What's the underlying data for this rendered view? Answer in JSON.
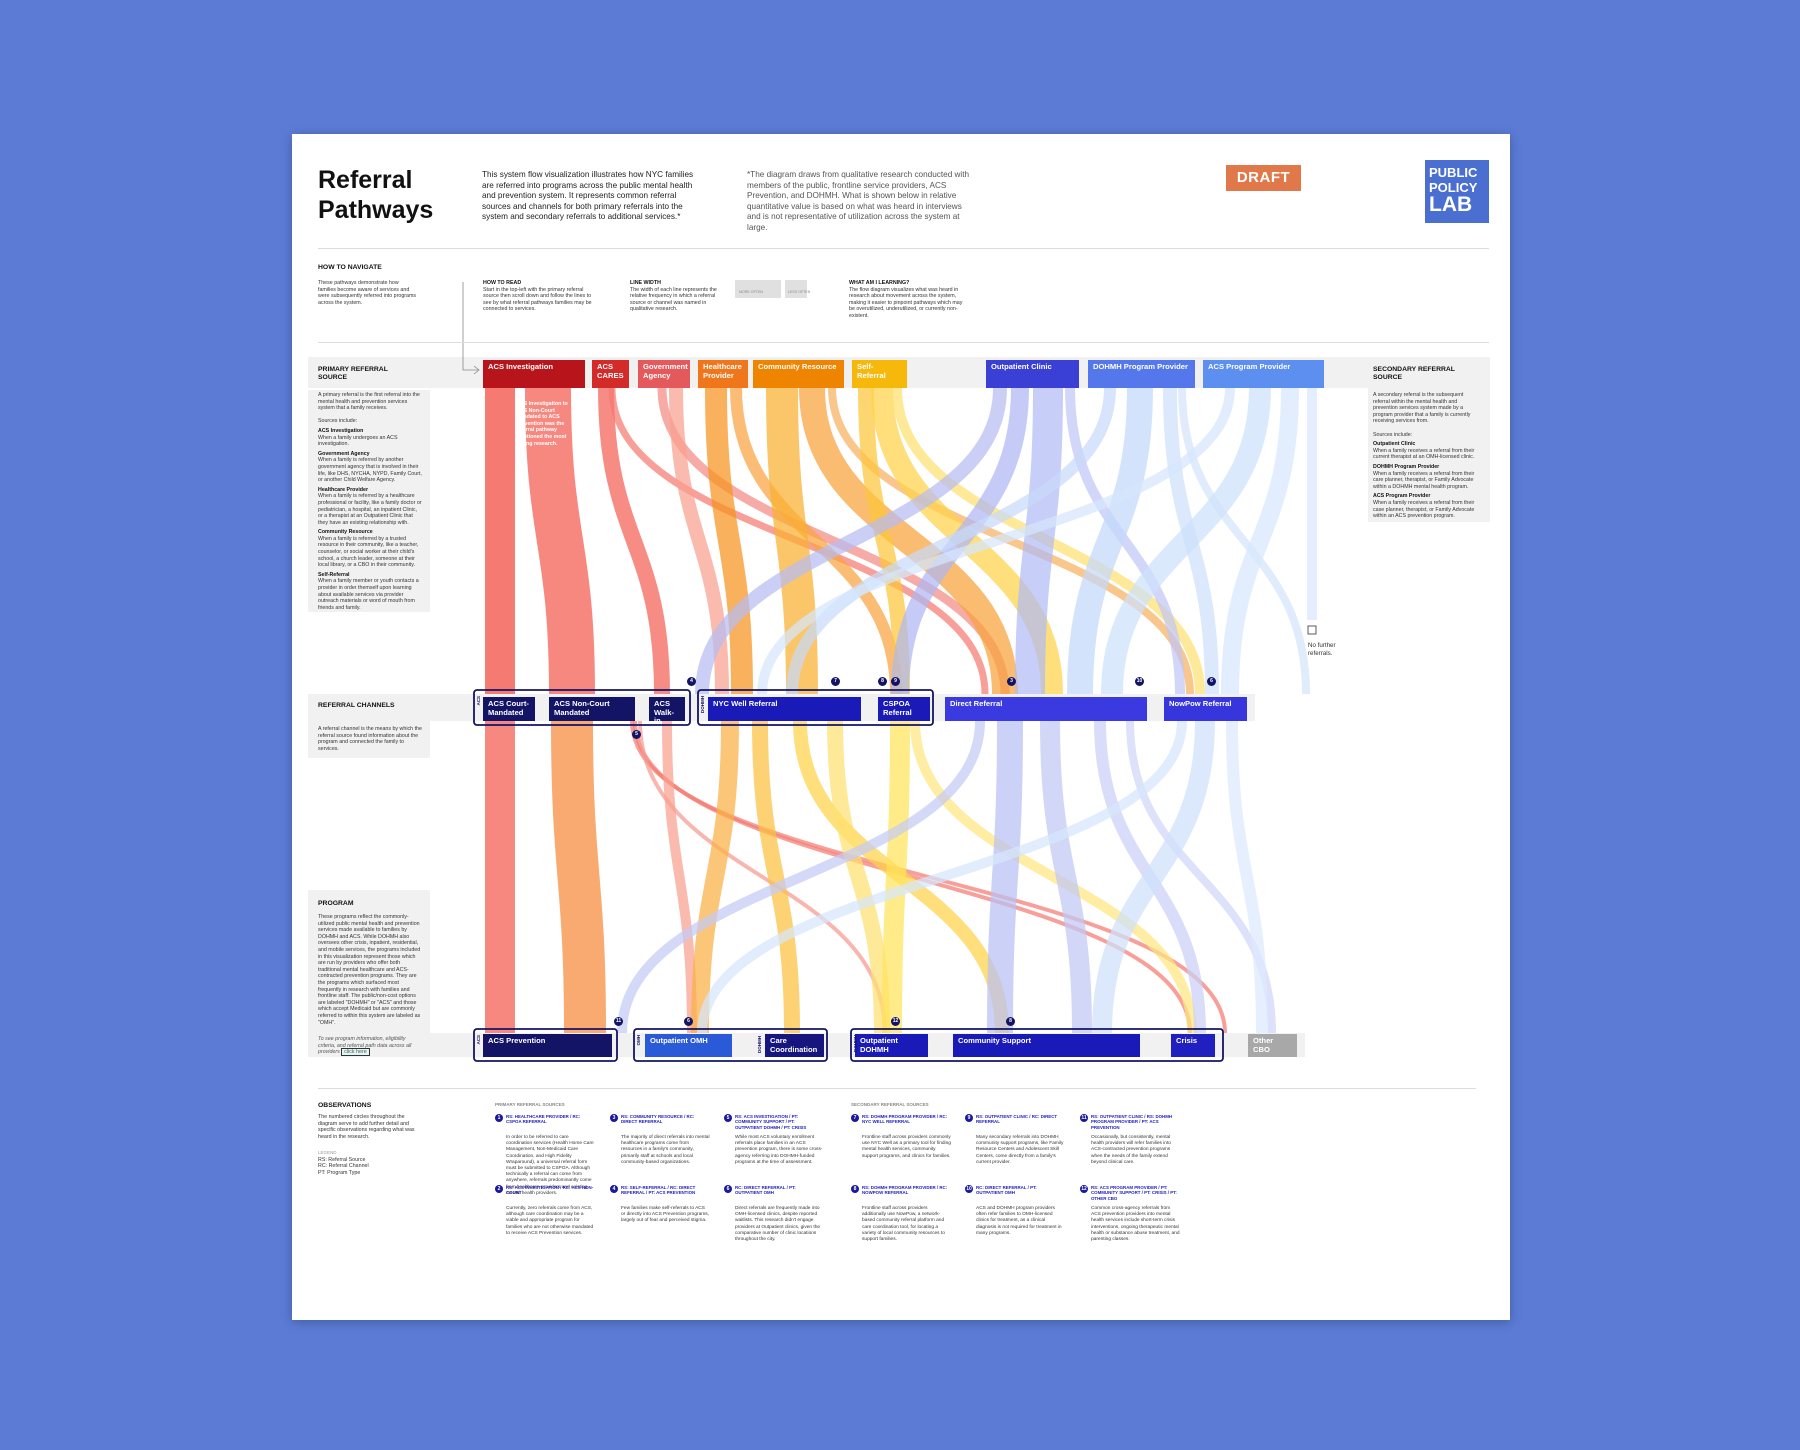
{
  "header": {
    "title": "Referral Pathways",
    "description": "This system flow visualization illustrates how NYC families are referred into programs across the public mental health and prevention system. It represents common referral sources and channels for both primary referrals into the system and secondary referrals to additional services.*",
    "disclaimer": "*The diagram draws from qualitative research conducted with members of the public, frontline service providers, ACS Prevention, and DOHMH. What is shown below in relative quantitative value is based on what was heard in interviews and is not representative of utilization across the system at large.",
    "badge": "DRAFT",
    "logo": [
      "PUBLIC",
      "POLICY",
      "LAB"
    ]
  },
  "navigation": {
    "heading": "HOW TO NAVIGATE",
    "intro": "These pathways demonstrate how families become aware of services and were subsequently referred into programs across the system.",
    "steps": [
      {
        "title": "HOW TO READ",
        "text": "Start in the top-left with the primary referral source then scroll down and follow the lines to see by what referral pathways families may be connected to services."
      },
      {
        "title": "LINE WIDTH",
        "text": "The width of each line represents the relative frequency in which a referral source or channel was named in qualitative research."
      },
      {
        "title": "WHAT AM I LEARNING?",
        "text": "The flow diagram visualizes what was heard in research about movement across the system, making it easier to pinpoint pathways which may be overutilized, underutilized, or currently non-existent."
      }
    ],
    "legend": [
      "MORE OFTEN",
      "LESS OFTEN"
    ]
  },
  "sections": {
    "primary": {
      "heading": "PRIMARY REFERRAL SOURCE",
      "intro": "A primary referral is the first referral into the mental health and prevention services system that a family receives.",
      "lead": "Sources include:",
      "items": [
        {
          "term": "ACS Investigation",
          "text": "When a family undergoes an ACS investigation."
        },
        {
          "term": "Government Agency",
          "text": "When a family is referred by another government agency that is involved in their life, like DHS, NYCHA, NYPD, Family Court, or another Child Welfare Agency."
        },
        {
          "term": "Healthcare Provider",
          "text": "When a family is referred by a healthcare professional or facility, like a family doctor or pediatrician, a hospital, an inpatient Clinic, or a therapist at an Outpatient Clinic that they have an existing relationship with."
        },
        {
          "term": "Community Resource",
          "text": "When a family is referred by a trusted resource in their community, like a teacher, counselor, or social worker at their child's school, a church leader, someone at their local library, or a CBO in their community."
        },
        {
          "term": "Self-Referral",
          "text": "When a family member or youth contacts a provider in order themself upon learning about available services via provider outreach materials or word of mouth from friends and family."
        }
      ]
    },
    "channels": {
      "heading": "REFERRAL CHANNELS",
      "intro": "A referral channel is the means by which the referral source found information about the program and connected the family to services."
    },
    "program": {
      "heading": "PROGRAM",
      "intro": "These programs reflect the commonly-utilized public mental health and prevention services made available to families by DOHMH and ACS. While DOHMH also oversees other crisis, inpatient, residential, and mobile services, the programs included in this visualization represent those which are run by providers who offer both traditional mental healthcare and ACS-contracted prevention programs. They are the programs which surfaced most frequently in research with families and frontline staff. The public/non-cost options are labeled \"DOHMH\" or \"ACS\" and those which accept Medicaid but are commonly referred to within this system are labeled as \"OMH\".",
      "link_text": "To see program information, eligibility criteria, and referral path data across all providers",
      "link": "click here"
    },
    "secondary": {
      "heading": "SECONDARY REFERRAL SOURCE",
      "intro": "A secondary referral is the subsequent referral within the mental health and prevention services system made by a program provider that a family is currently receiving services from.",
      "lead": "Sources include:",
      "items": [
        {
          "term": "Outpatient Clinic",
          "text": "When a family receives a referral from their current therapist at an OMH-licensed clinic."
        },
        {
          "term": "DOHMH Program Provider",
          "text": "When a family receives a referral from their care planner, therapist, or Family Advocate within a DOHMH mental health program."
        },
        {
          "term": "ACS Program Provider",
          "text": "When a family receives a referral from their case planner, therapist, or Family Advocate within an ACS prevention program."
        }
      ]
    }
  },
  "sources": [
    {
      "name": "ACS Investigation",
      "color": "#b8141b"
    },
    {
      "name": "ACS CARES",
      "color": "#d32a2a"
    },
    {
      "name": "Government Agency",
      "color": "#e45a5c"
    },
    {
      "name": "Healthcare Provider",
      "color": "#f0761c"
    },
    {
      "name": "Community Resource",
      "color": "#ef8400"
    },
    {
      "name": "Self-Referral",
      "color": "#f6b80a"
    },
    {
      "name": "Outpatient Clinic",
      "color": "#3a3fd6"
    },
    {
      "name": "DOHMH Program Provider",
      "color": "#5478ec"
    },
    {
      "name": "ACS Program Provider",
      "color": "#5c8ff0"
    }
  ],
  "channels": [
    {
      "name": "ACS Court-Mandated",
      "color": "#141466"
    },
    {
      "name": "ACS Non-Court Mandated",
      "color": "#141466"
    },
    {
      "name": "ACS Walk-in",
      "color": "#141466"
    },
    {
      "name": "NYC Well Referral",
      "color": "#1a1ab8"
    },
    {
      "name": "CSPOA Referral",
      "color": "#1a1ab8"
    },
    {
      "name": "Direct Referral",
      "color": "#3a3ae0"
    },
    {
      "name": "NowPow Referral",
      "color": "#3636dc"
    }
  ],
  "channel_groups": [
    "ACS",
    "DOHMH"
  ],
  "programs": [
    {
      "name": "ACS Prevention",
      "color": "#141466"
    },
    {
      "name": "Outpatient OMH",
      "color": "#2a5ad8"
    },
    {
      "name": "Care Coordination",
      "color": "#16167e"
    },
    {
      "name": "Outpatient DOHMH",
      "color": "#1a1ab8"
    },
    {
      "name": "Community Support",
      "color": "#1a1ab8"
    },
    {
      "name": "Crisis",
      "color": "#2020c0"
    },
    {
      "name": "Other CBO",
      "color": "#a8a8a8"
    }
  ],
  "program_groups": [
    "ACS",
    "OMH",
    "DOHMH"
  ],
  "annotation": "ACS Investigation to ACS Non-Court Mandated to ACS Prevention was the referral pathway mentioned the most during research.",
  "end_note": "No further referrals.",
  "markers": [
    "4",
    "7",
    "8",
    "9",
    "3",
    "10",
    "6",
    "11",
    "5",
    "6",
    "12",
    "8"
  ],
  "observations": {
    "heading": "OBSERVATIONS",
    "intro": "The numbered circles throughout the diagram serve to add further detail and specific observations regarding what was heard in the research.",
    "legend_heading": "LEGEND",
    "legend": [
      "RS: Referral Source",
      "RC: Referral Channel",
      "PT: Program Type"
    ],
    "column_headings": [
      "PRIMARY REFERRAL SOURCES",
      "SECONDARY REFERRAL SOURCES"
    ],
    "notes": [
      {
        "number": "1",
        "tags": "RS: HEALTHCARE PROVIDER / RC: CSPOA REFERRAL",
        "text": "In order to be referred to care coordination services (Health Home Care Management, Non-Medicaid Care Coordination, and High Fidelity Wraparound), a universal referral form must be submitted to CSPOA. Although technically a referral can come from anywhere, referrals predominantly come from healthcare providers and existing mental health providers."
      },
      {
        "number": "2",
        "tags": "RS: ACS INVESTIGATION / RC: ACS NON-COURT",
        "text": "Currently, zero referrals come from ACS, although care coordination may be a viable and appropriate program for families who are not otherwise mandated to receive ACS Prevention services."
      },
      {
        "number": "3",
        "tags": "RS: COMMUNITY RESOURCE / RC: DIRECT REFERRAL",
        "text": "The majority of direct referrals into mental healthcare programs come from resources in a family's community, primarily staff at schools and local community-based organizations."
      },
      {
        "number": "4",
        "tags": "RS: SELF-REFERRAL / RC: DIRECT REFERRAL / PT: ACS PREVENTION",
        "text": "Few families make self-referrals to ACS or directly into ACS Prevention programs, largely out of fear and perceived stigma."
      },
      {
        "number": "5",
        "tags": "RS: ACS INVESTIGATION / PT: COMMUNITY SUPPORT / PT: OUTPATIENT DOHMH / PT: CRISIS",
        "text": "While most ACS voluntary enrollment referrals place families in an ACS prevention program, there is some cross-agency referring into DOHMH-funded programs at the time of assessment."
      },
      {
        "number": "6",
        "tags": "RC: DIRECT REFERRAL / PT: OUTPATIENT OMH",
        "text": "Direct referrals are frequently made into OMH-licensed clinics, despite reported waitlists. This research didn't engage providers at Outpatient clinics, given the comparative number of clinic locations throughout the city."
      },
      {
        "number": "7",
        "tags": "RS: DOHMH PROGRAM PROVIDER / RC: NYC WELL REFERRAL",
        "text": "Frontline staff across providers commonly use NYC Well as a primary tool for finding mental health services, community support programs, and clinics for families."
      },
      {
        "number": "8",
        "tags": "RS: DOHMH PROGRAM PROVIDER / RC: NOWPOW REFERRAL",
        "text": "Frontline staff across providers additionally use NowPow, a network-based community referral platform and care coordination tool, for locating a variety of local community resources to support families."
      },
      {
        "number": "9",
        "tags": "RS: OUTPATIENT CLINIC / RC: DIRECT REFERRAL",
        "text": "Many secondary referrals into DOHMH community support programs, like Family Resource Centers and Adolescent Skill Centers, come directly from a family's current provider."
      },
      {
        "number": "10",
        "tags": "RC: DIRECT REFERRAL / PT: OUTPATIENT OMH",
        "text": "ACS and DOHMH program providers often refer families to OMH-licensed clinics for treatment, as a clinical diagnosis is not required for treatment in many programs."
      },
      {
        "number": "11",
        "tags": "RS: OUTPATIENT CLINIC / RS: DOHMH PROGRAM PROVIDER / PT: ACS PREVENTION",
        "text": "Occasionally, but consistently, mental health providers will refer families into ACS-contracted prevention programs when the needs of the family extend beyond clinical care."
      },
      {
        "number": "12",
        "tags": "RS: ACS PROGRAM PROVIDER / PT: COMMUNITY SUPPORT / PT: CRISIS / PT: OTHER CBO",
        "text": "Common cross-agency referrals from ACS prevention providers into mental health services include short-term crisis interventions, ongoing therapeutic mental health or substance abuse treatment, and parenting classes."
      }
    ]
  }
}
